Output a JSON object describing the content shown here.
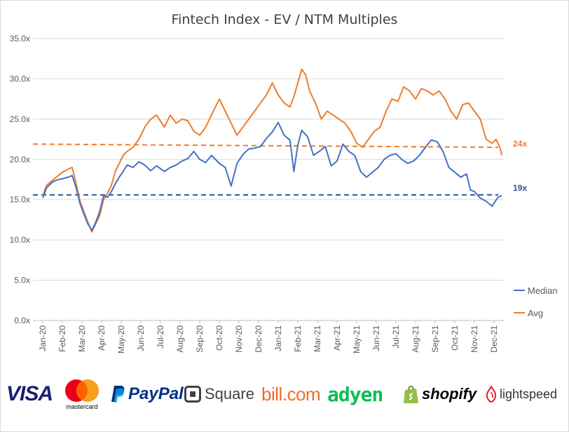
{
  "chart_data": {
    "type": "line",
    "title": "Fintech Index - EV / NTM Multiples",
    "ylim": [
      0,
      35
    ],
    "yticks": [
      "0.0x",
      "5.0x",
      "10.0x",
      "15.0x",
      "20.0x",
      "25.0x",
      "30.0x",
      "35.0x"
    ],
    "xticks": [
      "Jan-20",
      "Feb-20",
      "Mar-20",
      "Apr-20",
      "May-20",
      "Jun-20",
      "Jul-20",
      "Aug-20",
      "Sep-20",
      "Oct-20",
      "Nov-20",
      "Dec-20",
      "Jan-21",
      "Feb-21",
      "Mar-21",
      "Apr-21",
      "May-21",
      "Jun-21",
      "Jul-21",
      "Aug-21",
      "Sep-21",
      "Oct-21",
      "Nov-21",
      "Dec-21"
    ],
    "legend_position": "right",
    "grid": "horizontal",
    "series": [
      {
        "name": "Median",
        "color": "#4472c4",
        "points": [
          [
            0,
            15.2
          ],
          [
            0.2,
            16.5
          ],
          [
            0.5,
            17.2
          ],
          [
            0.8,
            17.5
          ],
          [
            1.0,
            17.6
          ],
          [
            1.3,
            17.8
          ],
          [
            1.5,
            18.0
          ],
          [
            1.7,
            16.5
          ],
          [
            1.9,
            14.5
          ],
          [
            2.1,
            13.2
          ],
          [
            2.3,
            12.0
          ],
          [
            2.5,
            11.2
          ],
          [
            2.7,
            12.2
          ],
          [
            2.9,
            13.5
          ],
          [
            3.1,
            15.5
          ],
          [
            3.3,
            15.3
          ],
          [
            3.5,
            16.0
          ],
          [
            3.7,
            17.0
          ],
          [
            3.9,
            17.8
          ],
          [
            4.1,
            18.5
          ],
          [
            4.3,
            19.3
          ],
          [
            4.6,
            19.0
          ],
          [
            4.9,
            19.7
          ],
          [
            5.2,
            19.3
          ],
          [
            5.5,
            18.6
          ],
          [
            5.8,
            19.2
          ],
          [
            6.2,
            18.5
          ],
          [
            6.5,
            19.0
          ],
          [
            6.8,
            19.3
          ],
          [
            7.1,
            19.8
          ],
          [
            7.4,
            20.1
          ],
          [
            7.7,
            21.0
          ],
          [
            8.0,
            20.0
          ],
          [
            8.3,
            19.6
          ],
          [
            8.6,
            20.5
          ],
          [
            9.0,
            19.5
          ],
          [
            9.3,
            19.0
          ],
          [
            9.6,
            16.7
          ],
          [
            9.9,
            19.5
          ],
          [
            10.2,
            20.6
          ],
          [
            10.5,
            21.3
          ],
          [
            10.8,
            21.4
          ],
          [
            11.1,
            21.6
          ],
          [
            11.4,
            22.6
          ],
          [
            11.7,
            23.4
          ],
          [
            12.0,
            24.6
          ],
          [
            12.3,
            23.0
          ],
          [
            12.6,
            22.4
          ],
          [
            12.8,
            18.5
          ],
          [
            13.0,
            21.8
          ],
          [
            13.2,
            23.6
          ],
          [
            13.5,
            22.8
          ],
          [
            13.8,
            20.5
          ],
          [
            14.1,
            21.0
          ],
          [
            14.4,
            21.6
          ],
          [
            14.7,
            19.2
          ],
          [
            15.0,
            19.8
          ],
          [
            15.3,
            21.9
          ],
          [
            15.6,
            21.0
          ],
          [
            15.9,
            20.5
          ],
          [
            16.2,
            18.5
          ],
          [
            16.5,
            17.8
          ],
          [
            16.8,
            18.4
          ],
          [
            17.1,
            19.0
          ],
          [
            17.4,
            20.0
          ],
          [
            17.7,
            20.5
          ],
          [
            18.0,
            20.7
          ],
          [
            18.3,
            20.0
          ],
          [
            18.6,
            19.5
          ],
          [
            18.9,
            19.8
          ],
          [
            19.2,
            20.5
          ],
          [
            19.5,
            21.5
          ],
          [
            19.8,
            22.4
          ],
          [
            20.1,
            22.2
          ],
          [
            20.4,
            21.0
          ],
          [
            20.7,
            19.0
          ],
          [
            21.0,
            18.4
          ],
          [
            21.3,
            17.8
          ],
          [
            21.6,
            18.2
          ],
          [
            21.8,
            16.2
          ],
          [
            22.0,
            16.0
          ],
          [
            22.3,
            15.2
          ],
          [
            22.6,
            14.8
          ],
          [
            22.9,
            14.2
          ],
          [
            23.2,
            15.3
          ],
          [
            23.4,
            15.5
          ]
        ]
      },
      {
        "name": "Avg",
        "color": "#ed7d31",
        "points": [
          [
            0,
            15.5
          ],
          [
            0.2,
            16.8
          ],
          [
            0.5,
            17.4
          ],
          [
            0.8,
            18.0
          ],
          [
            1.0,
            18.4
          ],
          [
            1.3,
            18.8
          ],
          [
            1.5,
            19.0
          ],
          [
            1.7,
            17.0
          ],
          [
            1.9,
            14.8
          ],
          [
            2.1,
            13.5
          ],
          [
            2.3,
            12.2
          ],
          [
            2.5,
            11.0
          ],
          [
            2.7,
            12.0
          ],
          [
            2.9,
            13.0
          ],
          [
            3.1,
            15.0
          ],
          [
            3.3,
            15.8
          ],
          [
            3.5,
            16.8
          ],
          [
            3.7,
            18.5
          ],
          [
            3.9,
            19.5
          ],
          [
            4.1,
            20.5
          ],
          [
            4.3,
            21.0
          ],
          [
            4.6,
            21.5
          ],
          [
            4.9,
            22.5
          ],
          [
            5.2,
            24.0
          ],
          [
            5.5,
            25.0
          ],
          [
            5.8,
            25.5
          ],
          [
            6.2,
            24.0
          ],
          [
            6.5,
            25.5
          ],
          [
            6.8,
            24.5
          ],
          [
            7.1,
            25.0
          ],
          [
            7.4,
            24.8
          ],
          [
            7.7,
            23.5
          ],
          [
            8.0,
            23.0
          ],
          [
            8.3,
            24.0
          ],
          [
            8.6,
            25.5
          ],
          [
            9.0,
            27.5
          ],
          [
            9.3,
            26.0
          ],
          [
            9.6,
            24.5
          ],
          [
            9.9,
            23.0
          ],
          [
            10.2,
            24.0
          ],
          [
            10.5,
            25.0
          ],
          [
            10.8,
            26.0
          ],
          [
            11.1,
            27.0
          ],
          [
            11.4,
            28.0
          ],
          [
            11.7,
            29.5
          ],
          [
            12.0,
            28.0
          ],
          [
            12.3,
            27.0
          ],
          [
            12.6,
            26.5
          ],
          [
            12.8,
            27.8
          ],
          [
            13.0,
            29.5
          ],
          [
            13.2,
            31.2
          ],
          [
            13.4,
            30.5
          ],
          [
            13.6,
            28.5
          ],
          [
            13.9,
            27.0
          ],
          [
            14.2,
            25.0
          ],
          [
            14.5,
            26.0
          ],
          [
            14.8,
            25.5
          ],
          [
            15.1,
            25.0
          ],
          [
            15.4,
            24.5
          ],
          [
            15.7,
            23.5
          ],
          [
            16.0,
            22.0
          ],
          [
            16.3,
            21.5
          ],
          [
            16.6,
            22.5
          ],
          [
            16.9,
            23.5
          ],
          [
            17.2,
            24.0
          ],
          [
            17.5,
            26.0
          ],
          [
            17.8,
            27.5
          ],
          [
            18.1,
            27.2
          ],
          [
            18.4,
            29.0
          ],
          [
            18.7,
            28.5
          ],
          [
            19.0,
            27.5
          ],
          [
            19.3,
            28.8
          ],
          [
            19.6,
            28.5
          ],
          [
            19.9,
            28.0
          ],
          [
            20.2,
            28.5
          ],
          [
            20.5,
            27.5
          ],
          [
            20.8,
            26.0
          ],
          [
            21.1,
            25.0
          ],
          [
            21.4,
            26.8
          ],
          [
            21.7,
            27.0
          ],
          [
            22.0,
            26.0
          ],
          [
            22.3,
            25.0
          ],
          [
            22.6,
            22.5
          ],
          [
            22.9,
            22.0
          ],
          [
            23.1,
            22.5
          ],
          [
            23.3,
            21.5
          ],
          [
            23.4,
            20.5
          ]
        ]
      }
    ],
    "reference_lines": [
      {
        "label": "24x",
        "value": 21.5,
        "start_value": 21.9,
        "color": "#ed7d31"
      },
      {
        "label": "19x",
        "value": 15.6,
        "start_value": 15.6,
        "color": "#2f5597"
      }
    ]
  },
  "logos": [
    {
      "name": "visa-logo",
      "text": "VISA",
      "color": "#1a1f71"
    },
    {
      "name": "mastercard-logo",
      "text": "mastercard",
      "color": "#000000"
    },
    {
      "name": "paypal-logo",
      "text": "PayPal",
      "color": "#003087"
    },
    {
      "name": "square-logo",
      "text": "Square",
      "color": "#3e4348"
    },
    {
      "name": "bill-logo",
      "text": "bill.com",
      "color": "#f26b2a"
    },
    {
      "name": "adyen-logo",
      "text": "adyen",
      "color": "#0abf53"
    },
    {
      "name": "shopify-logo",
      "text": "shopify",
      "color": "#000000"
    },
    {
      "name": "lightspeed-logo",
      "text": "lightspeed",
      "color": "#333333"
    }
  ]
}
